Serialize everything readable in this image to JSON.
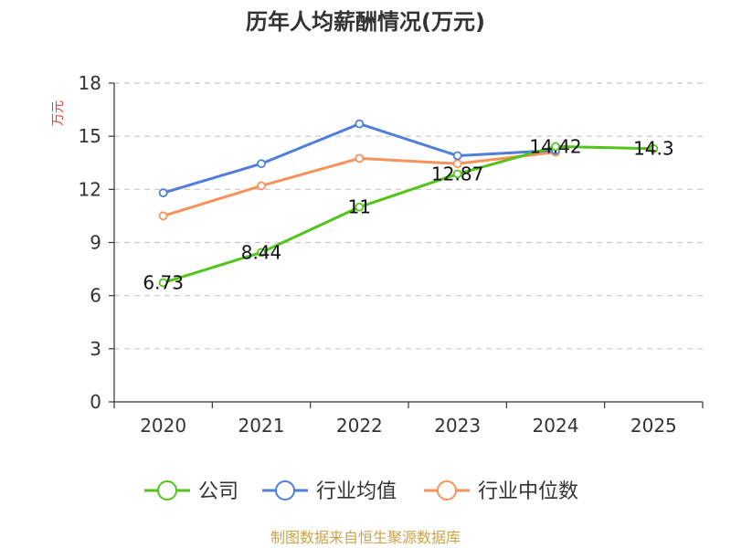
{
  "chart_data": {
    "type": "line",
    "title": "历年人均薪酬情况(万元)",
    "ylabel": "万元",
    "xlabel": "",
    "categories": [
      "2020",
      "2021",
      "2022",
      "2023",
      "2024",
      "2025"
    ],
    "ylim": [
      0,
      18
    ],
    "yticks": [
      0,
      3,
      6,
      9,
      12,
      15,
      18
    ],
    "grid": true,
    "legend_position": "bottom",
    "series": [
      {
        "name": "公司",
        "color": "#52c41a",
        "values": [
          6.73,
          8.44,
          11,
          12.87,
          14.42,
          14.3
        ],
        "labels": [
          "6.73",
          "8.44",
          "11",
          "12.87",
          "14.42",
          "14.3"
        ]
      },
      {
        "name": "行业均值",
        "color": "#4f7fd9",
        "values": [
          11.8,
          13.45,
          15.7,
          13.9,
          14.2,
          null
        ]
      },
      {
        "name": "行业中位数",
        "color": "#f7925a",
        "values": [
          10.5,
          12.2,
          13.75,
          13.45,
          14.1,
          null
        ]
      }
    ]
  },
  "footer": {
    "source": "制图数据来自恒生聚源数据库"
  }
}
